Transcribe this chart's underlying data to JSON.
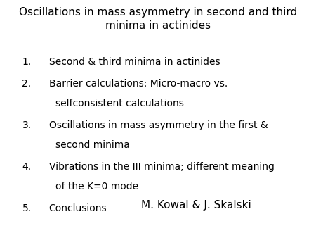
{
  "title_line1": "Oscillations in mass asymmetry in second and third",
  "title_line2": "minima in actinides",
  "items": [
    {
      "num": "1.",
      "line1": "Second & third minima in actinides",
      "line2": null
    },
    {
      "num": "2.",
      "line1": "Barrier calculations: Micro-macro vs.",
      "line2": "selfconsistent calculations"
    },
    {
      "num": "3.",
      "line1": "Oscillations in mass asymmetry in the first &",
      "line2": "second minima"
    },
    {
      "num": "4.",
      "line1": "Vibrations in the III minima; different meaning",
      "line2": "of the K=0 mode"
    },
    {
      "num": "5.",
      "line1": "Conclusions",
      "line2": null
    }
  ],
  "author": "M. Kowal & J. Skalski",
  "bg_color": "#ffffff",
  "text_color": "#000000",
  "title_fontsize": 11,
  "body_fontsize": 10,
  "author_fontsize": 11
}
